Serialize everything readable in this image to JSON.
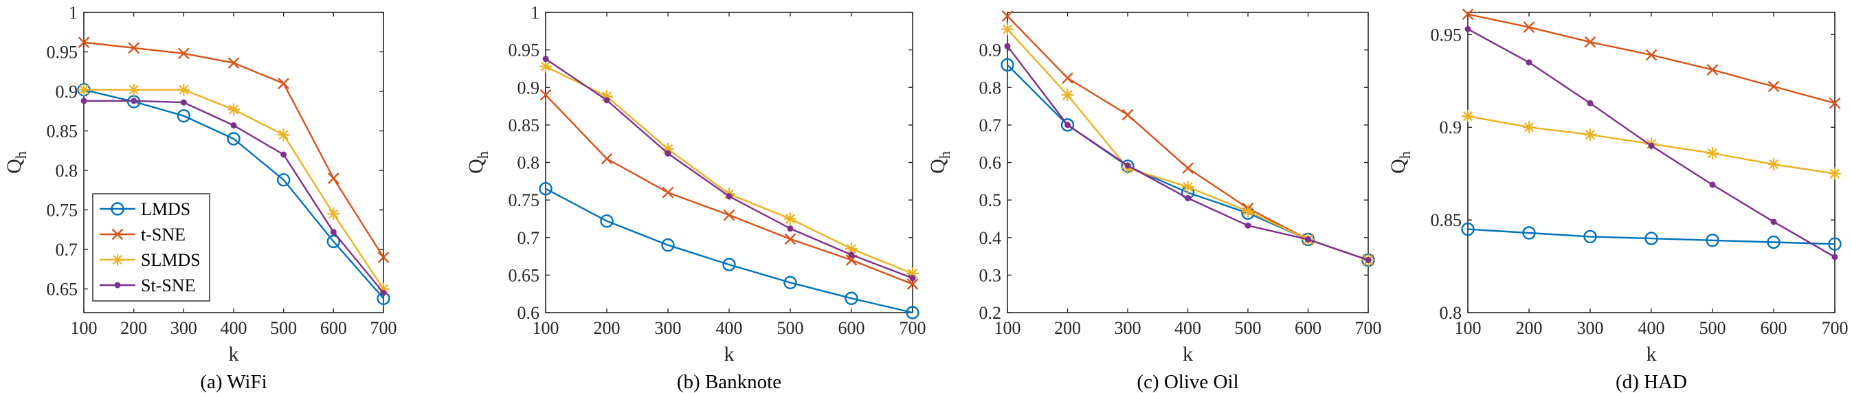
{
  "legend": {
    "placement": "bottom-left",
    "entries": [
      {
        "name": "LMDS",
        "color": "#0072BD",
        "marker": "circle"
      },
      {
        "name": "t-SNE",
        "color": "#D95319",
        "marker": "x"
      },
      {
        "name": "SLMDS",
        "color": "#EDB120",
        "marker": "star"
      },
      {
        "name": "St-SNE",
        "color": "#7E2F8E",
        "marker": "dot"
      }
    ]
  },
  "chart_data": [
    {
      "type": "line",
      "caption": "(a) WiFi",
      "xlabel": "k",
      "ylabel": "Q",
      "ylabel_sub": "h",
      "x": [
        100,
        200,
        300,
        400,
        500,
        600,
        700
      ],
      "xlim": [
        100,
        700
      ],
      "ylim": [
        0.62,
        1.0
      ],
      "yticks": [
        0.65,
        0.7,
        0.75,
        0.8,
        0.85,
        0.9,
        0.95,
        1
      ],
      "ytick_labels": [
        "0.65",
        "0.7",
        "0.75",
        "0.8",
        "0.85",
        "0.9",
        "0.95",
        "1"
      ],
      "grid": false,
      "series": [
        {
          "name": "LMDS",
          "values": [
            0.902,
            0.887,
            0.869,
            0.84,
            0.788,
            0.71,
            0.638
          ]
        },
        {
          "name": "t-SNE",
          "values": [
            0.962,
            0.955,
            0.948,
            0.936,
            0.91,
            0.79,
            0.69
          ]
        },
        {
          "name": "SLMDS",
          "values": [
            0.902,
            0.902,
            0.902,
            0.877,
            0.845,
            0.745,
            0.65
          ]
        },
        {
          "name": "St-SNE",
          "values": [
            0.888,
            0.888,
            0.886,
            0.857,
            0.82,
            0.722,
            0.645
          ]
        }
      ]
    },
    {
      "type": "line",
      "caption": "(b) Banknote",
      "xlabel": "k",
      "ylabel": "Q",
      "ylabel_sub": "h",
      "x": [
        100,
        200,
        300,
        400,
        500,
        600,
        700
      ],
      "xlim": [
        100,
        700
      ],
      "ylim": [
        0.6,
        1.0
      ],
      "yticks": [
        0.6,
        0.65,
        0.7,
        0.75,
        0.8,
        0.85,
        0.9,
        0.95,
        1
      ],
      "ytick_labels": [
        "0.6",
        "0.65",
        "0.7",
        "0.75",
        "0.8",
        "0.85",
        "0.9",
        "0.95",
        "1"
      ],
      "grid": false,
      "series": [
        {
          "name": "LMDS",
          "values": [
            0.765,
            0.722,
            0.69,
            0.664,
            0.64,
            0.619,
            0.6
          ]
        },
        {
          "name": "t-SNE",
          "values": [
            0.89,
            0.805,
            0.76,
            0.73,
            0.698,
            0.67,
            0.638
          ]
        },
        {
          "name": "SLMDS",
          "values": [
            0.928,
            0.888,
            0.818,
            0.758,
            0.725,
            0.685,
            0.652
          ]
        },
        {
          "name": "St-SNE",
          "values": [
            0.938,
            0.883,
            0.812,
            0.755,
            0.712,
            0.677,
            0.646
          ]
        }
      ]
    },
    {
      "type": "line",
      "caption": "(c) Olive Oil",
      "xlabel": "k",
      "ylabel": "Q",
      "ylabel_sub": "h",
      "x": [
        100,
        200,
        300,
        400,
        500,
        600,
        700
      ],
      "xlim": [
        100,
        700
      ],
      "ylim": [
        0.2,
        1.0
      ],
      "yticks": [
        0.2,
        0.3,
        0.4,
        0.5,
        0.6,
        0.7,
        0.8,
        0.9
      ],
      "ytick_labels": [
        "0.2",
        "0.3",
        "0.4",
        "0.5",
        "0.6",
        "0.7",
        "0.8",
        "0.9"
      ],
      "grid": false,
      "series": [
        {
          "name": "LMDS",
          "values": [
            0.86,
            0.7,
            0.59,
            0.52,
            0.465,
            0.395,
            0.34
          ]
        },
        {
          "name": "t-SNE",
          "values": [
            0.99,
            0.825,
            0.727,
            0.585,
            0.478,
            0.395,
            0.34
          ]
        },
        {
          "name": "SLMDS",
          "values": [
            0.955,
            0.78,
            0.585,
            0.535,
            0.47,
            0.395,
            0.34
          ]
        },
        {
          "name": "St-SNE",
          "values": [
            0.91,
            0.7,
            0.592,
            0.505,
            0.432,
            0.395,
            0.34
          ]
        }
      ]
    },
    {
      "type": "line",
      "caption": "(d) HAD",
      "xlabel": "k",
      "ylabel": "Q",
      "ylabel_sub": "h",
      "x": [
        100,
        200,
        300,
        400,
        500,
        600,
        700
      ],
      "xlim": [
        100,
        700
      ],
      "ylim": [
        0.8,
        0.962
      ],
      "yticks": [
        0.8,
        0.85,
        0.9,
        0.95
      ],
      "ytick_labels": [
        "0.8",
        "0.85",
        "0.9",
        "0.95"
      ],
      "grid": false,
      "series": [
        {
          "name": "LMDS",
          "values": [
            0.845,
            0.843,
            0.841,
            0.84,
            0.839,
            0.838,
            0.837
          ]
        },
        {
          "name": "t-SNE",
          "values": [
            0.961,
            0.954,
            0.946,
            0.939,
            0.931,
            0.922,
            0.913
          ]
        },
        {
          "name": "SLMDS",
          "values": [
            0.906,
            0.9,
            0.896,
            0.891,
            0.886,
            0.88,
            0.875
          ]
        },
        {
          "name": "St-SNE",
          "values": [
            0.953,
            0.935,
            0.913,
            0.89,
            0.869,
            0.849,
            0.83
          ]
        }
      ]
    }
  ]
}
